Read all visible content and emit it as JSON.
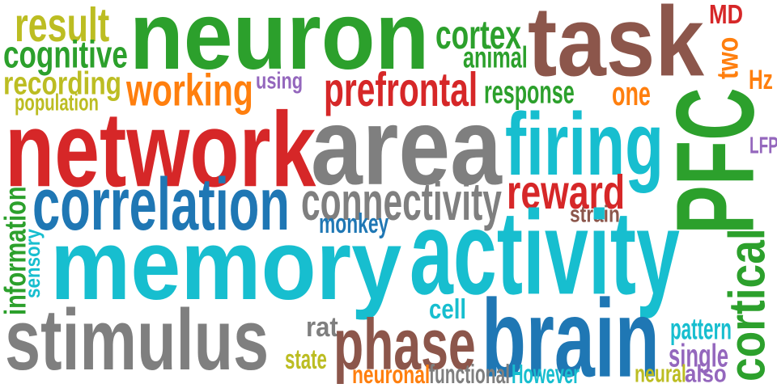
{
  "colors": {
    "green": "#2ca02c",
    "olive": "#bcbd22",
    "brown": "#8c564b",
    "red": "#d62728",
    "orange": "#ff7f0e",
    "cyan": "#17becf",
    "blue": "#1f77b4",
    "gray": "#7f7f7f",
    "purple": "#9467bd"
  },
  "words": [
    {
      "text": "neuron",
      "color": "green"
    },
    {
      "text": "task",
      "color": "brown"
    },
    {
      "text": "result",
      "color": "olive"
    },
    {
      "text": "cognitive",
      "color": "green"
    },
    {
      "text": "cortex",
      "color": "green"
    },
    {
      "text": "animal",
      "color": "green"
    },
    {
      "text": "MD",
      "color": "red"
    },
    {
      "text": "two",
      "color": "orange"
    },
    {
      "text": "Hz",
      "color": "orange"
    },
    {
      "text": "recording",
      "color": "olive"
    },
    {
      "text": "working",
      "color": "orange"
    },
    {
      "text": "using",
      "color": "purple"
    },
    {
      "text": "prefrontal",
      "color": "red"
    },
    {
      "text": "response",
      "color": "green"
    },
    {
      "text": "one",
      "color": "orange"
    },
    {
      "text": "population",
      "color": "olive"
    },
    {
      "text": "network",
      "color": "red"
    },
    {
      "text": "area",
      "color": "gray"
    },
    {
      "text": "firing",
      "color": "cyan"
    },
    {
      "text": "PFC",
      "color": "green"
    },
    {
      "text": "LFP",
      "color": "purple"
    },
    {
      "text": "correlation",
      "color": "blue"
    },
    {
      "text": "connectivity",
      "color": "gray"
    },
    {
      "text": "reward",
      "color": "red"
    },
    {
      "text": "strain",
      "color": "brown"
    },
    {
      "text": "monkey",
      "color": "blue"
    },
    {
      "text": "information",
      "color": "green"
    },
    {
      "text": "sensory",
      "color": "cyan"
    },
    {
      "text": "memory",
      "color": "cyan"
    },
    {
      "text": "activity",
      "color": "cyan"
    },
    {
      "text": "cortical",
      "color": "green"
    },
    {
      "text": "cell",
      "color": "cyan"
    },
    {
      "text": "stimulus",
      "color": "gray"
    },
    {
      "text": "rat",
      "color": "gray"
    },
    {
      "text": "phase",
      "color": "brown"
    },
    {
      "text": "brain",
      "color": "blue"
    },
    {
      "text": "pattern",
      "color": "cyan"
    },
    {
      "text": "state",
      "color": "olive"
    },
    {
      "text": "single",
      "color": "purple"
    },
    {
      "text": "neuronal",
      "color": "orange"
    },
    {
      "text": "functional",
      "color": "gray"
    },
    {
      "text": "However",
      "color": "cyan"
    },
    {
      "text": "neural",
      "color": "olive"
    },
    {
      "text": "also",
      "color": "purple"
    }
  ]
}
